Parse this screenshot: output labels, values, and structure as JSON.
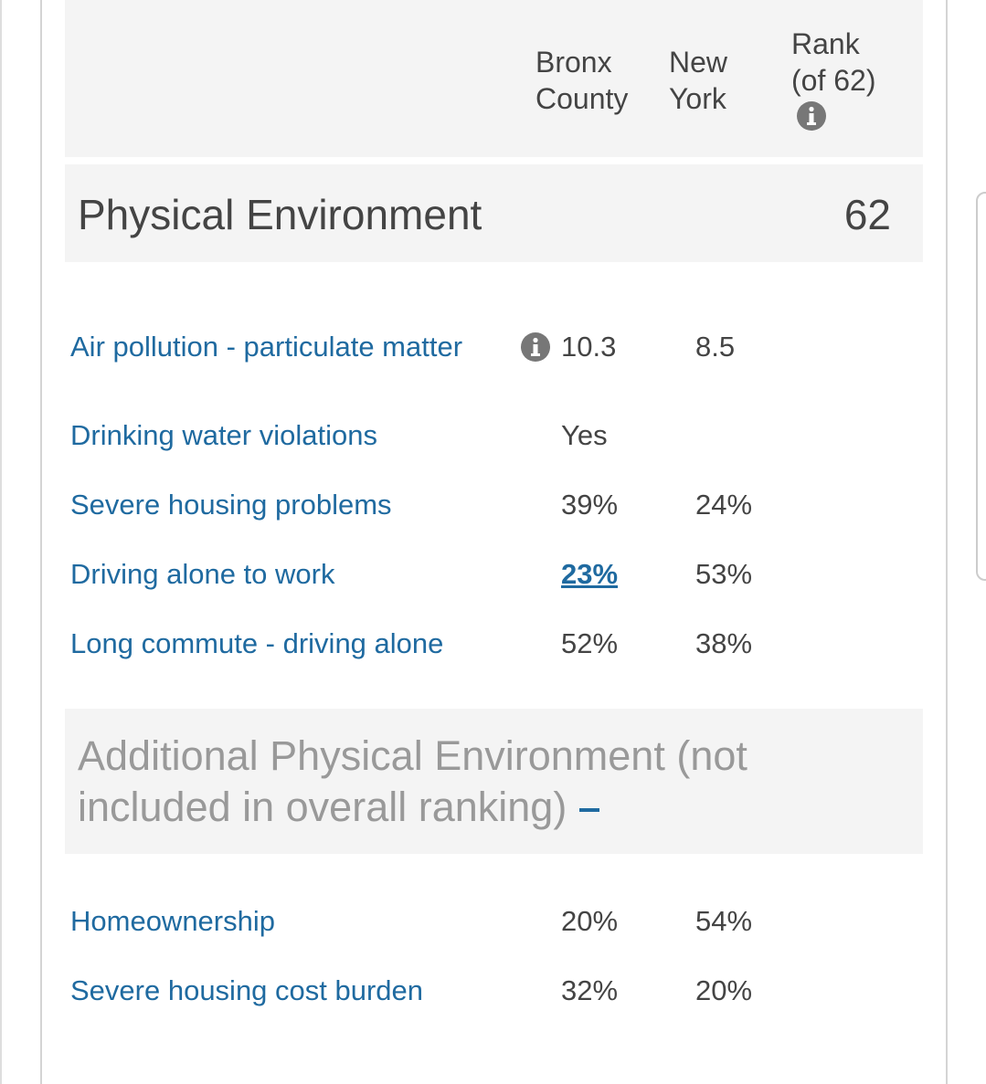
{
  "header": {
    "columns": [
      "Bronx County",
      "New York",
      "Rank (of 62)"
    ]
  },
  "section": {
    "title": "Physical Environment",
    "rank": 62
  },
  "rows": [
    {
      "label": "Air pollution - particulate matter",
      "county": "10.3",
      "state": "8.5"
    },
    {
      "label": "Drinking water violations",
      "county": "Yes"
    },
    {
      "label": "Severe housing problems",
      "county": "39%",
      "state": "24%"
    },
    {
      "label": "Driving alone to work",
      "county": "23%",
      "state": "53%"
    },
    {
      "label": "Long commute - driving alone",
      "county": "52%",
      "state": "38%"
    }
  ],
  "additional": {
    "title": "Additional Physical Environment (not included in overall ranking)",
    "rows": [
      {
        "label": "Homeownership",
        "county": "20%",
        "state": "54%"
      },
      {
        "label": "Severe housing cost burden",
        "county": "32%",
        "state": "20%"
      }
    ]
  }
}
